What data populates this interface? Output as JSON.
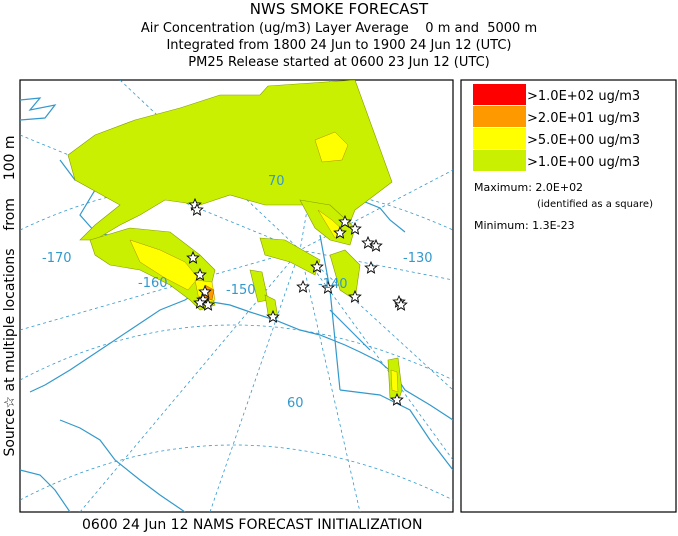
{
  "header": {
    "title": "NWS SMOKE FORECAST",
    "lines": [
      "Air Concentration (ug/m3) Layer Average    0 m and  5000 m",
      "Integrated from 1800 24 Jun to 1900 24 Jun 12 (UTC)",
      "PM25 Release started at 0600 23 Jun 12 (UTC)"
    ]
  },
  "side_label": "Source☆ at multiple locations    from    100 m",
  "map": {
    "labels": [
      "-170",
      "-160",
      "-150",
      "-140",
      "-130",
      "70",
      "60"
    ]
  },
  "legend": {
    "items": [
      {
        "label": ">1.0E+02 ug/m3",
        "color": "#ff0000"
      },
      {
        "label": ">2.0E+01 ug/m3",
        "color": "#ff9900"
      },
      {
        "label": ">5.0E+00 ug/m3",
        "color": "#ffff00"
      },
      {
        "label": ">1.0E+00 ug/m3",
        "color": "#c8f000"
      }
    ],
    "maximum": "Maximum: 2.0E+02",
    "note": "(identified as a square)",
    "minimum": "Minimum: 1.3E-23"
  },
  "footer": "0600 24 Jun 12 NAMS FORECAST INITIALIZATION"
}
